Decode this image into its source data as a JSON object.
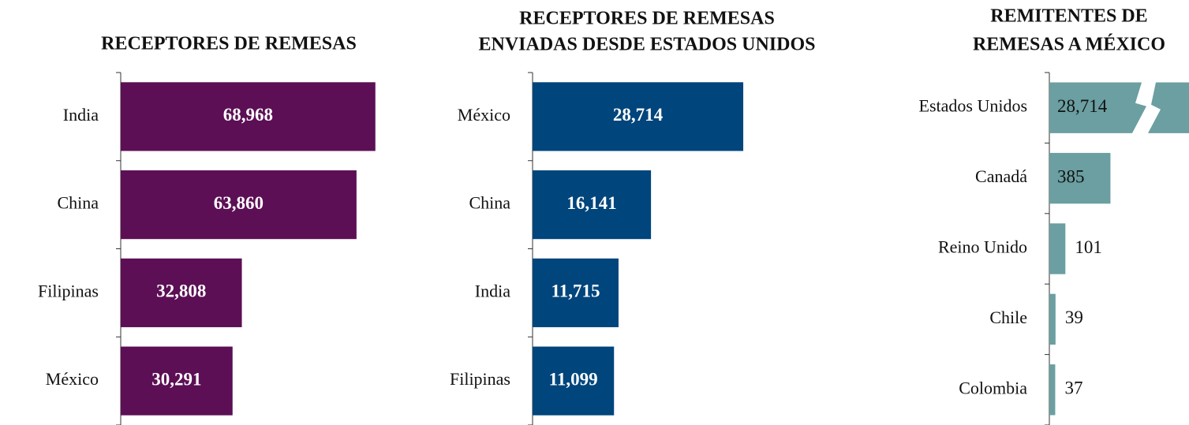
{
  "chart_data": [
    {
      "type": "barh",
      "title": [
        "RECEPTORES DE REMESAS"
      ],
      "categories": [
        "India",
        "China",
        "Filipinas",
        "México"
      ],
      "values": [
        68968,
        63860,
        32808,
        30291
      ],
      "value_labels": [
        "68,968",
        "63,860",
        "32,808",
        "30,291"
      ],
      "color": "#5c0f55",
      "xlim": [
        0,
        75000
      ]
    },
    {
      "type": "barh",
      "title": [
        "RECEPTORES DE REMESAS",
        "ENVIADAS DESDE ESTADOS UNIDOS"
      ],
      "categories": [
        "México",
        "China",
        "India",
        "Filipinas"
      ],
      "values": [
        28714,
        16141,
        11715,
        11099
      ],
      "value_labels": [
        "28,714",
        "16,141",
        "11,715",
        "11,099"
      ],
      "color": "#00457c",
      "xlim": [
        0,
        30000
      ]
    },
    {
      "type": "barh",
      "title": [
        "REMITENTES DE",
        "REMESAS A MÉXICO"
      ],
      "categories": [
        "Estados Unidos",
        "Canadá",
        "Reino Unido",
        "Chile",
        "Colombia"
      ],
      "values": [
        28714,
        385,
        101,
        39,
        37
      ],
      "value_labels": [
        "28,714",
        "385",
        "101",
        "39",
        "37"
      ],
      "color": "#6b9fa1",
      "xlim": [
        0,
        880
      ],
      "axis_break": true
    }
  ]
}
